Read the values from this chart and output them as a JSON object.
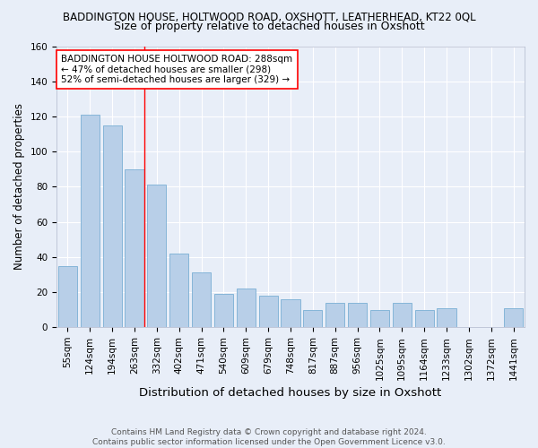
{
  "title": "BADDINGTON HOUSE, HOLTWOOD ROAD, OXSHOTT, LEATHERHEAD, KT22 0QL",
  "subtitle": "Size of property relative to detached houses in Oxshott",
  "xlabel": "Distribution of detached houses by size in Oxshott",
  "ylabel": "Number of detached properties",
  "categories": [
    "55sqm",
    "124sqm",
    "194sqm",
    "263sqm",
    "332sqm",
    "402sqm",
    "471sqm",
    "540sqm",
    "609sqm",
    "679sqm",
    "748sqm",
    "817sqm",
    "887sqm",
    "956sqm",
    "1025sqm",
    "1095sqm",
    "1164sqm",
    "1233sqm",
    "1302sqm",
    "1372sqm",
    "1441sqm"
  ],
  "values": [
    35,
    121,
    115,
    90,
    81,
    42,
    31,
    19,
    22,
    18,
    16,
    10,
    14,
    14,
    10,
    14,
    10,
    11,
    0,
    0,
    11
  ],
  "bar_color": "#b8cfe8",
  "bar_edge_color": "#7aafd4",
  "background_color": "#e8eef8",
  "grid_color": "#ffffff",
  "annotation_box_text": "BADDINGTON HOUSE HOLTWOOD ROAD: 288sqm\n← 47% of detached houses are smaller (298)\n52% of semi-detached houses are larger (329) →",
  "vline_x_index": 3,
  "vline_color": "#ff0000",
  "ylim": [
    0,
    160
  ],
  "yticks": [
    0,
    20,
    40,
    60,
    80,
    100,
    120,
    140,
    160
  ],
  "footer": "Contains HM Land Registry data © Crown copyright and database right 2024.\nContains public sector information licensed under the Open Government Licence v3.0.",
  "title_fontsize": 8.5,
  "subtitle_fontsize": 9,
  "xlabel_fontsize": 9.5,
  "ylabel_fontsize": 8.5,
  "tick_fontsize": 7.5,
  "footer_fontsize": 6.5,
  "ann_fontsize": 7.5
}
